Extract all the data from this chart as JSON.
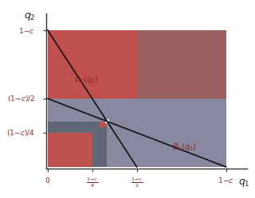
{
  "xlabel": "$q_1$",
  "ylabel": "$q_2$",
  "one_minus_c": 1.0,
  "half": 0.5,
  "quarter": 0.25,
  "third": 0.3333333,
  "bg_color": "#ffffff",
  "col_red": "#c0504d",
  "col_red_muted": "#9b6060",
  "col_gray": "#8888a0",
  "col_gray_dark": "#606878",
  "col_line": "#111111",
  "col_label": "#8b2525",
  "tick_label_color": "#8b2525"
}
